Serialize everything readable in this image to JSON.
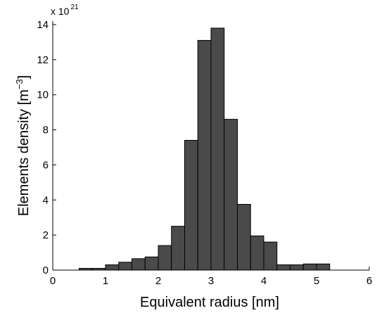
{
  "chart_data": {
    "type": "bar",
    "xlabel": "Equivalent radius [nm]",
    "ylabel_main": "Elements density [m",
    "ylabel_sup": "−3",
    "ylabel_close": "]",
    "y_multiplier_base": "x 10",
    "y_multiplier_exp": "21",
    "xlim": [
      0,
      6
    ],
    "ylim": [
      0,
      14.2
    ],
    "xticks": [
      0,
      1,
      2,
      3,
      4,
      5,
      6
    ],
    "yticks": [
      0,
      2,
      4,
      6,
      8,
      10,
      12,
      14
    ],
    "bin_width": 0.25,
    "bins": [
      {
        "x0": 0.5,
        "value": 0.1
      },
      {
        "x0": 0.75,
        "value": 0.1
      },
      {
        "x0": 1.0,
        "value": 0.3
      },
      {
        "x0": 1.25,
        "value": 0.45
      },
      {
        "x0": 1.5,
        "value": 0.65
      },
      {
        "x0": 1.75,
        "value": 0.75
      },
      {
        "x0": 2.0,
        "value": 1.4
      },
      {
        "x0": 2.25,
        "value": 2.5
      },
      {
        "x0": 2.5,
        "value": 7.4
      },
      {
        "x0": 2.75,
        "value": 13.1
      },
      {
        "x0": 3.0,
        "value": 13.8
      },
      {
        "x0": 3.25,
        "value": 8.6
      },
      {
        "x0": 3.5,
        "value": 3.75
      },
      {
        "x0": 3.75,
        "value": 1.95
      },
      {
        "x0": 4.0,
        "value": 1.6
      },
      {
        "x0": 4.25,
        "value": 0.3
      },
      {
        "x0": 4.5,
        "value": 0.3
      },
      {
        "x0": 4.75,
        "value": 0.35
      },
      {
        "x0": 5.0,
        "value": 0.35
      }
    ],
    "bar_color": "#4a4a4a",
    "edge_color": "#000000",
    "grid": false
  }
}
